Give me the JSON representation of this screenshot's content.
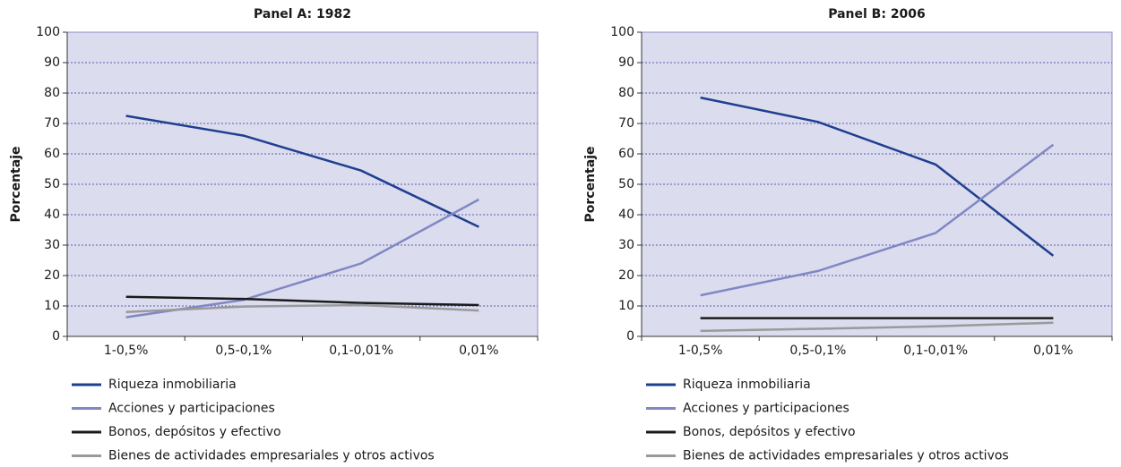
{
  "chart_data": [
    {
      "type": "line",
      "title": "Panel A: 1982",
      "y_label": "Porcentaje",
      "categories": [
        "1-0,5%",
        "0,5-0,1%",
        "0,1-0,01%",
        "0,01%"
      ],
      "ylim": [
        0,
        100
      ],
      "yticks": [
        0,
        10,
        20,
        30,
        40,
        50,
        60,
        70,
        80,
        90,
        100
      ],
      "grid": true,
      "series": [
        {
          "name": "Riqueza inmobiliaria",
          "color": "#1f3f8f",
          "values": [
            72.5,
            66,
            54.5,
            36
          ]
        },
        {
          "name": "Acciones y participaciones",
          "color": "#8088c4",
          "values": [
            6.3,
            12,
            24,
            45
          ]
        },
        {
          "name": "Bonos, depósitos y efectivo",
          "color": "#1a1a1a",
          "values": [
            13,
            12.3,
            11,
            10.3
          ]
        },
        {
          "name": "Bienes de actividades empresariales y otros activos",
          "color": "#9a9a9a",
          "values": [
            8,
            9.8,
            10.3,
            8.5
          ]
        }
      ]
    },
    {
      "type": "line",
      "title": "Panel B: 2006",
      "y_label": "Porcentaje",
      "categories": [
        "1-0,5%",
        "0,5-0,1%",
        "0,1-0,01%",
        "0,01%"
      ],
      "ylim": [
        0,
        100
      ],
      "yticks": [
        0,
        10,
        20,
        30,
        40,
        50,
        60,
        70,
        80,
        90,
        100
      ],
      "grid": true,
      "series": [
        {
          "name": "Riqueza inmobiliaria",
          "color": "#1f3f8f",
          "values": [
            78.5,
            70.5,
            56.5,
            26.5
          ]
        },
        {
          "name": "Acciones y participaciones",
          "color": "#8088c4",
          "values": [
            13.5,
            21.5,
            34,
            63
          ]
        },
        {
          "name": "Bonos, depósitos y efectivo",
          "color": "#1a1a1a",
          "values": [
            6,
            6,
            6,
            6
          ]
        },
        {
          "name": "Bienes de actividades empresariales y otros activos",
          "color": "#9a9a9a",
          "values": [
            1.8,
            2.5,
            3.3,
            4.5
          ]
        }
      ]
    }
  ]
}
